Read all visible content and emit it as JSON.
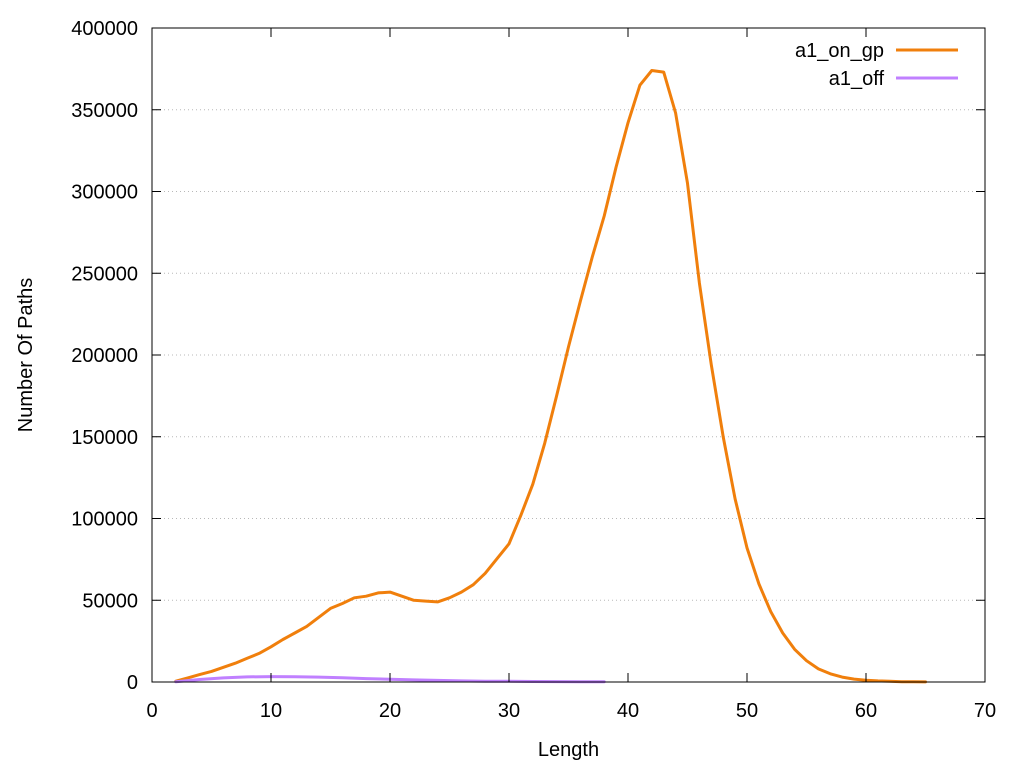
{
  "chart_data": {
    "type": "line",
    "xlabel": "Length",
    "ylabel": "Number Of Paths",
    "xlim": [
      0,
      70
    ],
    "ylim": [
      0,
      400000
    ],
    "xticks": [
      0,
      10,
      20,
      30,
      40,
      50,
      60,
      70
    ],
    "yticks": [
      0,
      50000,
      100000,
      150000,
      200000,
      250000,
      300000,
      350000,
      400000
    ],
    "grid": "horizontal dotted",
    "legend_position": "top-right",
    "series": [
      {
        "name": "a1_on_gp",
        "color": "#f07f0c",
        "x": [
          2,
          3,
          4,
          5,
          6,
          7,
          8,
          9,
          10,
          11,
          12,
          13,
          14,
          15,
          16,
          17,
          18,
          19,
          20,
          21,
          22,
          23,
          24,
          25,
          26,
          27,
          28,
          29,
          30,
          31,
          32,
          33,
          34,
          35,
          36,
          37,
          38,
          39,
          40,
          41,
          42,
          43,
          44,
          45,
          46,
          47,
          48,
          49,
          50,
          51,
          52,
          53,
          54,
          55,
          56,
          57,
          58,
          59,
          60,
          61,
          62,
          63,
          64,
          65
        ],
        "y": [
          500,
          2500,
          4500,
          6500,
          9000,
          11500,
          14500,
          17500,
          21500,
          26000,
          30000,
          34000,
          39500,
          45000,
          48000,
          51500,
          52500,
          54500,
          55000,
          52500,
          50000,
          49500,
          49000,
          51500,
          55000,
          59500,
          66500,
          75500,
          84500,
          102000,
          121000,
          146000,
          175000,
          205000,
          233000,
          260000,
          285000,
          315000,
          342000,
          365000,
          374000,
          373000,
          348000,
          305000,
          244000,
          194000,
          150000,
          112000,
          82000,
          60000,
          43000,
          30000,
          20000,
          13000,
          8000,
          5000,
          3000,
          1800,
          1100,
          700,
          400,
          200,
          100,
          50
        ]
      },
      {
        "name": "a1_off",
        "color": "#c080ff",
        "x": [
          2,
          4,
          6,
          8,
          10,
          12,
          14,
          16,
          18,
          20,
          22,
          24,
          26,
          28,
          30,
          32,
          34,
          36,
          38
        ],
        "y": [
          200,
          1500,
          2500,
          3100,
          3300,
          3200,
          3000,
          2600,
          2100,
          1700,
          1300,
          1000,
          700,
          500,
          400,
          300,
          250,
          200,
          150
        ]
      }
    ]
  }
}
